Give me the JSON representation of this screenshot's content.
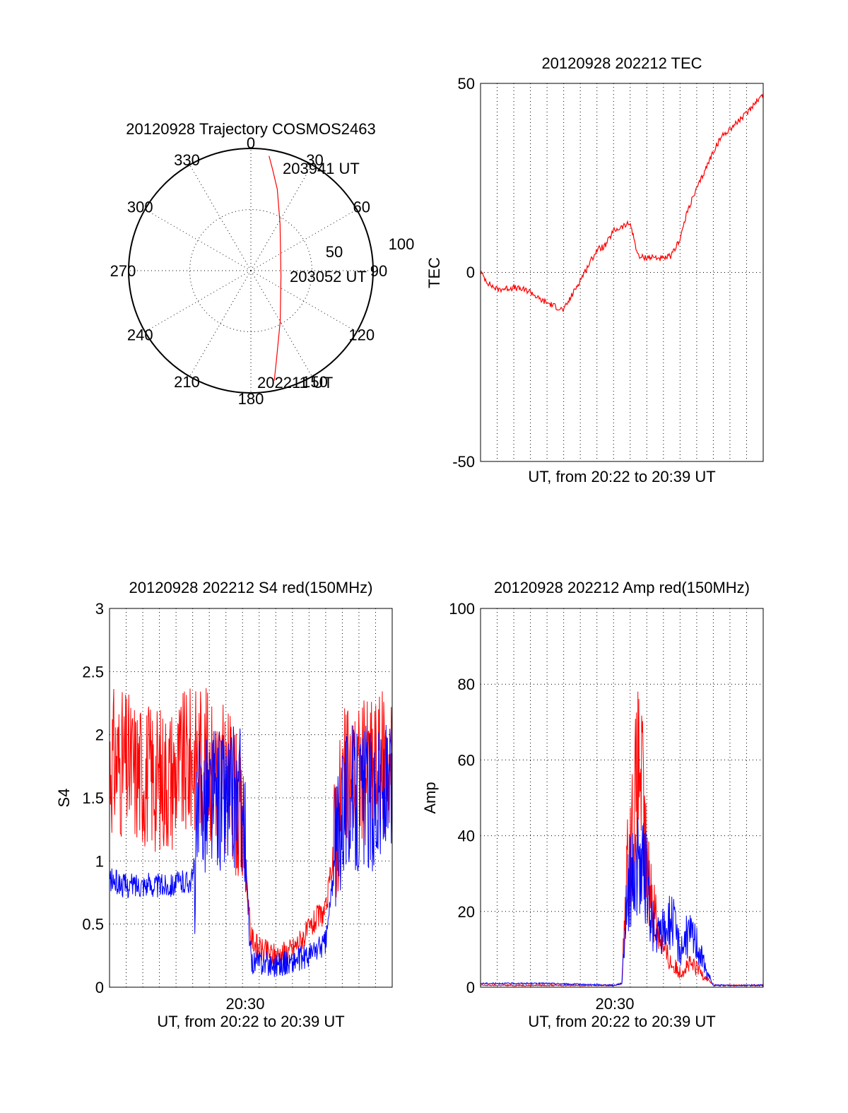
{
  "colors": {
    "red_series": "#ff0000",
    "blue_series": "#0000ff",
    "axes": "#000000"
  },
  "chart_data": [
    {
      "id": "trajectory",
      "type": "polar",
      "title": "20120928 Trajectory COSMOS2463",
      "angle_ticks": [
        "0",
        "30",
        "60",
        "90",
        "120",
        "150",
        "180",
        "210",
        "240",
        "270",
        "300",
        "330"
      ],
      "radial_ticks": [
        "50",
        "100"
      ],
      "r_max": 100,
      "grid": true,
      "series": [
        {
          "color": "red",
          "points": [
            [
              9,
              95
            ],
            [
              12,
              85
            ],
            [
              18,
              70
            ],
            [
              32,
              45
            ],
            [
              100,
              25
            ],
            [
              150,
              48
            ],
            [
              164,
              76
            ],
            [
              168,
              92
            ]
          ]
        }
      ],
      "annotations": [
        "203941 UT",
        "203052 UT",
        "202211 UT"
      ]
    },
    {
      "id": "tec",
      "type": "line",
      "title": "20120928 202212 TEC",
      "xlabel": "UT, from 20:22 to 20:39 UT",
      "ylabel": "TEC",
      "yticks": [
        "50",
        "0",
        "-50"
      ],
      "ylim": [
        -50,
        50
      ],
      "xlim": [
        0,
        17
      ],
      "grid": true,
      "series": [
        {
          "color": "red",
          "x": [
            0,
            0.5,
            1,
            2,
            3,
            3.5,
            4,
            4.5,
            5,
            5.5,
            6,
            6.5,
            7,
            7.5,
            8,
            8.5,
            9,
            9.5,
            10,
            10.5,
            11,
            11.5,
            12,
            12.5,
            13,
            13.5,
            14,
            14.5,
            15,
            15.5,
            16,
            16.5,
            17
          ],
          "y": [
            0,
            -3,
            -4.5,
            -4,
            -5,
            -7,
            -8,
            -9,
            -10,
            -6,
            -2,
            2,
            6,
            7,
            11,
            12,
            13,
            4,
            4,
            4,
            3.5,
            4.5,
            9,
            17,
            22,
            27,
            32,
            36,
            38,
            40,
            42,
            45,
            47
          ]
        }
      ]
    },
    {
      "id": "s4",
      "type": "line",
      "title": "20120928 202212 S4 red(150MHz)",
      "xlabel": "UT, from 20:22 to 20:39 UT",
      "ylabel": "S4",
      "xtick": "20:30",
      "yticks": [
        "0",
        "0.5",
        "1",
        "1.5",
        "2",
        "2.5",
        "3"
      ],
      "ylim": [
        0,
        3
      ],
      "xlim": [
        0,
        17
      ],
      "grid": true,
      "series": [
        {
          "color": "red",
          "x": [
            0,
            1,
            2,
            3,
            4,
            5,
            5.5,
            6,
            6.5,
            7,
            7.5,
            8,
            8.5,
            9,
            10,
            11,
            12,
            12.5,
            13,
            14,
            15,
            16,
            17
          ],
          "y": [
            1.8,
            1.75,
            1.7,
            1.65,
            1.7,
            1.8,
            1.85,
            1.75,
            1.7,
            1.65,
            1.55,
            1.2,
            0.4,
            0.3,
            0.25,
            0.3,
            0.45,
            0.55,
            0.6,
            1.6,
            1.7,
            1.75,
            1.8
          ]
        },
        {
          "color": "blue",
          "x": [
            0,
            1,
            2,
            3,
            4,
            5,
            5.5,
            6,
            6.5,
            7,
            7.5,
            8,
            8.5,
            9,
            10,
            11,
            12,
            12.5,
            13,
            14,
            15,
            16,
            17
          ],
          "y": [
            0.85,
            0.8,
            0.82,
            0.8,
            0.82,
            0.85,
            1.5,
            1.5,
            1.5,
            1.5,
            1.5,
            1.5,
            0.2,
            0.2,
            0.18,
            0.2,
            0.25,
            0.3,
            0.35,
            1.5,
            1.5,
            1.5,
            1.5
          ]
        }
      ]
    },
    {
      "id": "amp",
      "type": "line",
      "title": "20120928 202212 Amp red(150MHz)",
      "xlabel": "UT, from 20:22 to 20:39 UT",
      "ylabel": "Amp",
      "xtick": "20:30",
      "yticks": [
        "0",
        "20",
        "40",
        "60",
        "80",
        "100"
      ],
      "ylim": [
        0,
        100
      ],
      "xlim": [
        0,
        17
      ],
      "grid": true,
      "series": [
        {
          "color": "red",
          "x": [
            0,
            4,
            8,
            8.5,
            8.8,
            9.2,
            9.6,
            10,
            10.5,
            11,
            11.5,
            12,
            12.5,
            13,
            13.5,
            14,
            17
          ],
          "y": [
            0.5,
            0.5,
            0.5,
            1,
            30,
            45,
            60,
            30,
            20,
            10,
            6,
            4,
            6,
            5,
            3,
            0.5,
            0.5
          ]
        },
        {
          "color": "blue",
          "x": [
            0,
            4,
            8,
            8.5,
            8.8,
            9.2,
            9.6,
            10,
            10.5,
            11,
            11.5,
            12,
            12.5,
            13,
            13.5,
            14,
            17
          ],
          "y": [
            1,
            1,
            0.5,
            1,
            25,
            30,
            32,
            28,
            12,
            15,
            18,
            10,
            14,
            12,
            5,
            0.5,
            0.5
          ]
        }
      ]
    }
  ]
}
